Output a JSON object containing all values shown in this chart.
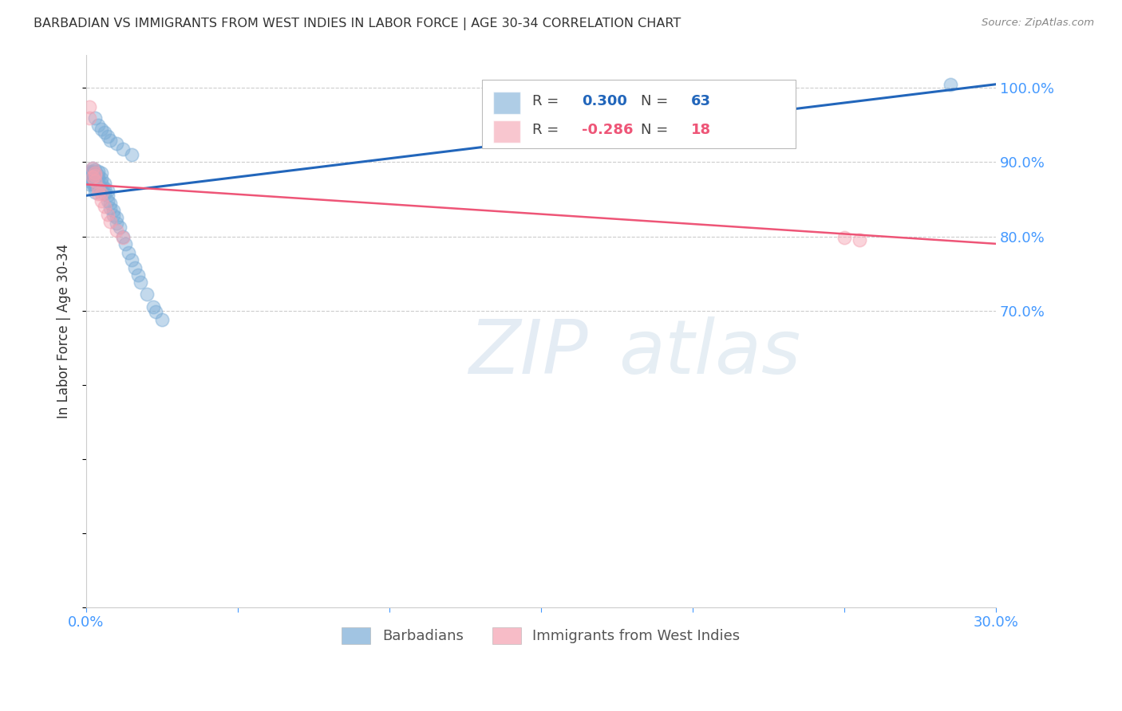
{
  "title": "BARBADIAN VS IMMIGRANTS FROM WEST INDIES IN LABOR FORCE | AGE 30-34 CORRELATION CHART",
  "source": "Source: ZipAtlas.com",
  "ylabel": "In Labor Force | Age 30-34",
  "xlim": [
    0.0,
    0.3
  ],
  "ylim": [
    0.3,
    1.045
  ],
  "xticks": [
    0.0,
    0.05,
    0.1,
    0.15,
    0.2,
    0.25,
    0.3
  ],
  "xticklabels": [
    "0.0%",
    "",
    "",
    "",
    "",
    "",
    "30.0%"
  ],
  "yticks_right": [
    0.7,
    0.8,
    0.9,
    1.0
  ],
  "yticklabels_right": [
    "70.0%",
    "80.0%",
    "90.0%",
    "100.0%"
  ],
  "blue_r": "0.300",
  "blue_n": "63",
  "pink_r": "-0.286",
  "pink_n": "18",
  "blue_color": "#7aacd6",
  "pink_color": "#f4a0b0",
  "blue_line_color": "#2266bb",
  "pink_line_color": "#ee5577",
  "legend_label_blue": "Barbadians",
  "legend_label_pink": "Immigrants from West Indies",
  "watermark": "ZIPatlas",
  "blue_x": [
    0.001,
    0.001,
    0.001,
    0.001,
    0.001,
    0.001,
    0.002,
    0.002,
    0.002,
    0.002,
    0.002,
    0.002,
    0.002,
    0.003,
    0.003,
    0.003,
    0.003,
    0.003,
    0.003,
    0.003,
    0.004,
    0.004,
    0.004,
    0.004,
    0.004,
    0.005,
    0.005,
    0.005,
    0.005,
    0.006,
    0.006,
    0.006,
    0.007,
    0.007,
    0.007,
    0.008,
    0.008,
    0.009,
    0.009,
    0.01,
    0.01,
    0.011,
    0.012,
    0.013,
    0.014,
    0.015,
    0.016,
    0.017,
    0.018,
    0.02,
    0.022,
    0.023,
    0.025,
    0.003,
    0.004,
    0.005,
    0.006,
    0.007,
    0.008,
    0.01,
    0.012,
    0.015,
    0.285
  ],
  "blue_y": [
    0.87,
    0.875,
    0.88,
    0.882,
    0.885,
    0.888,
    0.87,
    0.875,
    0.878,
    0.882,
    0.885,
    0.888,
    0.892,
    0.86,
    0.865,
    0.87,
    0.875,
    0.88,
    0.885,
    0.89,
    0.868,
    0.872,
    0.878,
    0.882,
    0.888,
    0.865,
    0.872,
    0.878,
    0.885,
    0.858,
    0.865,
    0.872,
    0.848,
    0.855,
    0.862,
    0.838,
    0.845,
    0.828,
    0.835,
    0.818,
    0.825,
    0.812,
    0.8,
    0.79,
    0.778,
    0.768,
    0.758,
    0.748,
    0.738,
    0.722,
    0.705,
    0.698,
    0.688,
    0.96,
    0.95,
    0.945,
    0.94,
    0.935,
    0.93,
    0.925,
    0.918,
    0.91,
    1.005
  ],
  "pink_x": [
    0.001,
    0.001,
    0.002,
    0.002,
    0.003,
    0.003,
    0.003,
    0.004,
    0.004,
    0.005,
    0.005,
    0.006,
    0.007,
    0.008,
    0.01,
    0.012,
    0.25,
    0.255
  ],
  "pink_y": [
    0.96,
    0.975,
    0.88,
    0.892,
    0.875,
    0.882,
    0.885,
    0.858,
    0.865,
    0.848,
    0.858,
    0.84,
    0.83,
    0.82,
    0.808,
    0.798,
    0.798,
    0.795
  ],
  "blue_trend_x": [
    0.0,
    0.3
  ],
  "blue_trend_y": [
    0.855,
    1.005
  ],
  "pink_trend_x": [
    0.0,
    0.3
  ],
  "pink_trend_y": [
    0.87,
    0.79
  ],
  "grid_color": "#cccccc",
  "right_axis_color": "#4499ff",
  "bottom_axis_label_color": "#4499ff",
  "title_color": "#333333"
}
